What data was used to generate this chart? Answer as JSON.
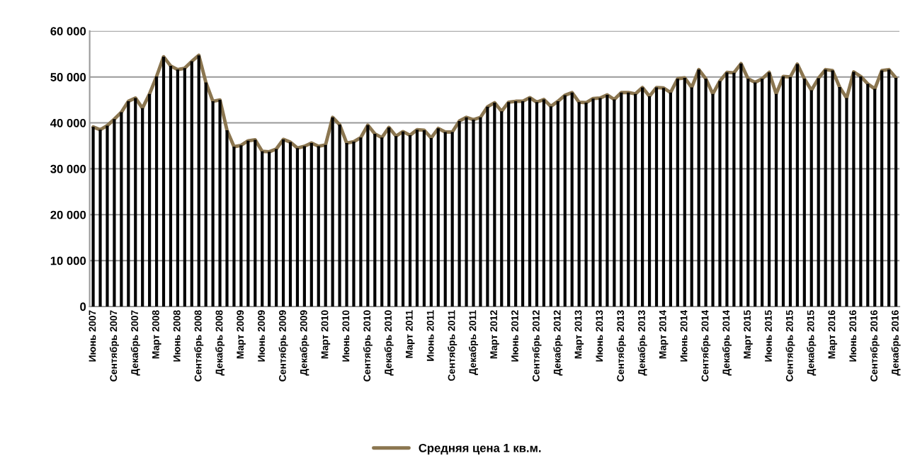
{
  "chart_data": {
    "type": "bar",
    "categories": [
      "Июнь 2007",
      null,
      null,
      "Сентябрь 2007",
      null,
      null,
      "Декабрь 2007",
      null,
      null,
      "Март 2008",
      null,
      null,
      "Июнь 2008",
      null,
      null,
      "Сентябрь 2008",
      null,
      null,
      "Декабрь 2008",
      null,
      null,
      "Март 2009",
      null,
      null,
      "Июнь 2009",
      null,
      null,
      "Сентябрь 2009",
      null,
      null,
      "Декабрь 2009",
      null,
      null,
      "Март 2010",
      null,
      null,
      "Июнь 2010",
      null,
      null,
      "Сентябрь 2010",
      null,
      null,
      "Декабрь 2010",
      null,
      null,
      "Март 2011",
      null,
      null,
      "Июнь 2011",
      null,
      null,
      "Сентябрь 2011",
      null,
      null,
      "Декабрь 2011",
      null,
      null,
      "Март 2012",
      null,
      null,
      "Июнь 2012",
      null,
      null,
      "Сентябрь 2012",
      null,
      null,
      "Декабрь 2012",
      null,
      null,
      "Март 2013",
      null,
      null,
      "Июнь 2013",
      null,
      null,
      "Сентябрь 2013",
      null,
      null,
      "Декабрь 2013",
      null,
      null,
      "Март 2014",
      null,
      null,
      "Июнь 2014",
      null,
      null,
      "Сентябрь 2014",
      null,
      null,
      "Декабрь 2014",
      null,
      null,
      "Март 2015",
      null,
      null,
      "Июнь 2015",
      null,
      null,
      "Сентябрь 2015",
      null,
      null,
      "Декабрь 2015",
      null,
      null,
      "Март 2016",
      null,
      null,
      "Июнь 2016",
      null,
      null,
      "Сентябрь 2016",
      null,
      null,
      "Декабрь 2016"
    ],
    "series": [
      {
        "color": "#000000",
        "values": [
          39100,
          38500,
          39400,
          40800,
          42300,
          44700,
          45400,
          43200,
          46300,
          50100,
          54400,
          52400,
          51600,
          51900,
          53400,
          54700,
          48800,
          44700,
          45000,
          38400,
          34800,
          35100,
          36100,
          36300,
          33800,
          33700,
          34300,
          36400,
          35800,
          34500,
          34900,
          35600,
          34900,
          35200,
          41200,
          39600,
          35600,
          35900,
          36800,
          39500,
          37600,
          36800,
          39000,
          37100,
          38100,
          37300,
          38500,
          38400,
          36700,
          38800,
          38000,
          38000,
          40400,
          41200,
          40700,
          41200,
          43500,
          44400,
          42500,
          44500,
          44700,
          44700,
          45500,
          44500,
          45100,
          43600,
          44700,
          46000,
          46600,
          44500,
          44400,
          45300,
          45400,
          46100,
          45100,
          46600,
          46600,
          46300,
          47700,
          45800,
          47700,
          47600,
          46600,
          49600,
          49800,
          47700,
          51600,
          49600,
          46300,
          49100,
          51000,
          50900,
          52900,
          49600,
          48800,
          49600,
          51000,
          46300,
          50100,
          50000,
          52800,
          49600,
          47100,
          49700,
          51600,
          51400,
          47800,
          45400,
          51100,
          50100,
          48500,
          47400,
          51400,
          51600,
          49800
        ]
      },
      {
        "type": "line",
        "name": "Средняя цена 1 кв.м.",
        "color": "#8b7650",
        "values": [
          39100,
          38500,
          39400,
          40800,
          42300,
          44700,
          45400,
          43200,
          46300,
          50100,
          54400,
          52400,
          51600,
          51900,
          53400,
          54700,
          48800,
          44700,
          45000,
          38400,
          34800,
          35100,
          36100,
          36300,
          33800,
          33700,
          34300,
          36400,
          35800,
          34500,
          34900,
          35600,
          34900,
          35200,
          41200,
          39600,
          35600,
          35900,
          36800,
          39500,
          37600,
          36800,
          39000,
          37100,
          38100,
          37300,
          38500,
          38400,
          36700,
          38800,
          38000,
          38000,
          40400,
          41200,
          40700,
          41200,
          43500,
          44400,
          42500,
          44500,
          44700,
          44700,
          45500,
          44500,
          45100,
          43600,
          44700,
          46000,
          46600,
          44500,
          44400,
          45300,
          45400,
          46100,
          45100,
          46600,
          46600,
          46300,
          47700,
          45800,
          47700,
          47600,
          46600,
          49600,
          49800,
          47700,
          51600,
          49600,
          46300,
          49100,
          51000,
          50900,
          52900,
          49600,
          48800,
          49600,
          51000,
          46300,
          50100,
          50000,
          52800,
          49600,
          47100,
          49700,
          51600,
          51400,
          47800,
          45400,
          51100,
          50100,
          48500,
          47400,
          51400,
          51600,
          49800
        ]
      }
    ],
    "ylim": [
      0,
      60000
    ],
    "yticks": [
      {
        "value": 0,
        "label": "0"
      },
      {
        "value": 10000,
        "label": "10 000"
      },
      {
        "value": 20000,
        "label": "20 000"
      },
      {
        "value": 30000,
        "label": "30 000"
      },
      {
        "value": 40000,
        "label": "40 000"
      },
      {
        "value": 50000,
        "label": "50 000"
      },
      {
        "value": 60000,
        "label": "60 000"
      }
    ],
    "grid": "y",
    "legend": "bottom"
  }
}
